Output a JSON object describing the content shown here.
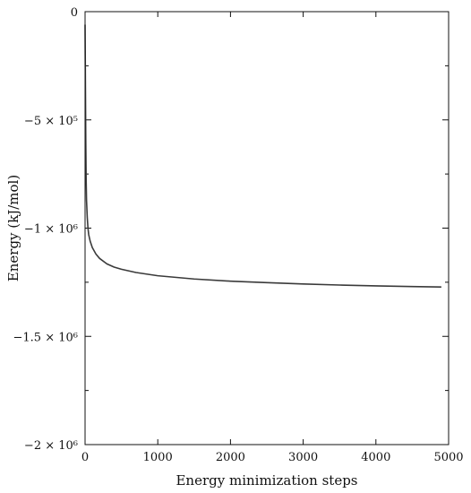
{
  "chart_data": {
    "type": "line",
    "title": "",
    "xlabel": "Energy minimization steps",
    "ylabel": "Energy (kJ/mol)",
    "xlim": [
      0,
      5000
    ],
    "ylim": [
      -2000000,
      0
    ],
    "grid": false,
    "x_ticks": [
      {
        "value": 0,
        "label": "0"
      },
      {
        "value": 1000,
        "label": "1000"
      },
      {
        "value": 2000,
        "label": "2000"
      },
      {
        "value": 3000,
        "label": "3000"
      },
      {
        "value": 4000,
        "label": "4000"
      },
      {
        "value": 5000,
        "label": "5000"
      }
    ],
    "y_ticks": [
      {
        "value": 0,
        "label": "0"
      },
      {
        "value": -500000,
        "label": "−5 × 10⁵"
      },
      {
        "value": -1000000,
        "label": "−1 × 10⁶"
      },
      {
        "value": -1500000,
        "label": "−1.5 × 10⁶"
      },
      {
        "value": -2000000,
        "label": "−2 × 10⁶"
      }
    ],
    "series": [
      {
        "color": "#3a3a3a",
        "x": [
          0,
          5,
          10,
          15,
          20,
          30,
          40,
          50,
          70,
          100,
          150,
          200,
          300,
          400,
          500,
          700,
          1000,
          1500,
          2000,
          2500,
          3000,
          3500,
          4000,
          4500,
          4900
        ],
        "y": [
          -60000,
          -350000,
          -600000,
          -780000,
          -870000,
          -950000,
          -1000000,
          -1030000,
          -1060000,
          -1090000,
          -1120000,
          -1140000,
          -1165000,
          -1180000,
          -1190000,
          -1205000,
          -1220000,
          -1235000,
          -1245000,
          -1252000,
          -1258000,
          -1263000,
          -1267000,
          -1270000,
          -1272000
        ]
      }
    ]
  }
}
